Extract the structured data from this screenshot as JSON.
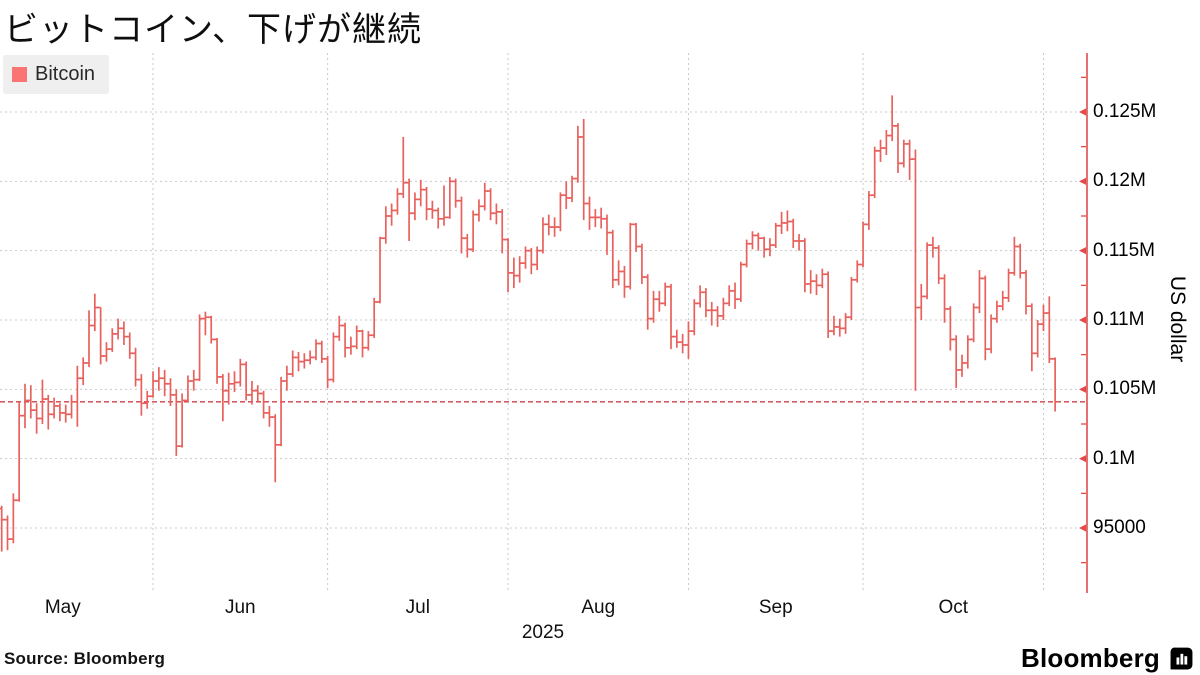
{
  "title": "ビットコイン、下げが継続",
  "legend": {
    "label": "Bitcoin",
    "swatch_color": "#f97473"
  },
  "source": "Source: Bloomberg",
  "brand": {
    "name": "Bloomberg"
  },
  "y_axis": {
    "title": "US dollar",
    "ticks": [
      {
        "value": 95000,
        "label": "95000"
      },
      {
        "value": 100000,
        "label": "0.1M"
      },
      {
        "value": 105000,
        "label": "0.105M"
      },
      {
        "value": 110000,
        "label": "0.11M"
      },
      {
        "value": 115000,
        "label": "0.115M"
      },
      {
        "value": 120000,
        "label": "0.12M"
      },
      {
        "value": 125000,
        "label": "0.125M"
      }
    ]
  },
  "x_axis": {
    "year_label": "2025",
    "month_labels": [
      "May",
      "Jun",
      "Jul",
      "Aug",
      "Sep",
      "Oct"
    ]
  },
  "colors": {
    "bar": "#e8615d",
    "axis": "#e14b4b",
    "last_price_line": "#d13c44",
    "gridline": "#c9c9c9",
    "legend_bg": "#efeff0"
  },
  "chart_data": {
    "type": "ohlc_bar",
    "series_name": "Bitcoin",
    "unit": "US dollar",
    "values_in": "thousands_usd",
    "frequency": "daily",
    "start_date": "2025-05-06",
    "open_rule": "previous_close",
    "open_first": 96.4,
    "last_close_usd": 104100,
    "ylim_usd": [
      90500,
      129500
    ],
    "y_ticks_usd": [
      95000,
      100000,
      105000,
      110000,
      115000,
      120000,
      125000
    ],
    "close": [
      95.6,
      94.2,
      97.0,
      103.1,
      104.2,
      103.5,
      102.9,
      104.3,
      103.2,
      103.8,
      103.3,
      103.2,
      104.1,
      105.8,
      106.9,
      109.6,
      110.9,
      107.4,
      107.9,
      109.0,
      109.4,
      108.8,
      107.6,
      105.7,
      104.0,
      104.5,
      105.6,
      105.8,
      105.4,
      104.6,
      100.9,
      104.2,
      105.6,
      105.7,
      110.1,
      110.2,
      108.6,
      105.9,
      104.9,
      105.4,
      105.5,
      106.8,
      104.6,
      104.9,
      104.7,
      103.3,
      103.0,
      101.0,
      105.6,
      106.1,
      107.3,
      107.0,
      107.1,
      107.3,
      108.3,
      107.2,
      105.7,
      108.8,
      109.6,
      108.0,
      108.1,
      109.2,
      108.0,
      108.9,
      111.3,
      115.9,
      117.5,
      117.9,
      119.1,
      119.9,
      117.7,
      118.7,
      119.4,
      118.0,
      117.9,
      117.3,
      117.4,
      120.0,
      118.6,
      115.9,
      115.1,
      117.6,
      118.2,
      119.3,
      117.7,
      117.8,
      115.8,
      113.4,
      113.2,
      114.1,
      115.0,
      114.0,
      115.0,
      116.9,
      116.7,
      116.7,
      119.0,
      118.8,
      120.2,
      123.2,
      118.4,
      117.4,
      117.4,
      117.3,
      116.3,
      112.9,
      113.5,
      112.4,
      116.9,
      115.3,
      113.1,
      110.1,
      111.5,
      111.2,
      112.4,
      108.8,
      108.4,
      108.2,
      109.2,
      111.2,
      112.0,
      110.7,
      110.7,
      110.3,
      111.2,
      112.1,
      111.5,
      114.0,
      115.5,
      116.1,
      115.9,
      115.1,
      115.4,
      116.8,
      117.0,
      117.1,
      115.7,
      115.7,
      112.6,
      112.8,
      112.5,
      113.3,
      109.2,
      109.5,
      109.4,
      110.2,
      112.9,
      114.0,
      116.9,
      119.0,
      122.2,
      122.4,
      123.3,
      124.0,
      121.3,
      122.7,
      121.6,
      110.9,
      111.7,
      115.4,
      115.2,
      113.0,
      110.8,
      108.6,
      106.4,
      106.9,
      108.6,
      110.9,
      113.0,
      107.9,
      110.1,
      111.0,
      111.6,
      113.4,
      115.3,
      113.4,
      111.0,
      107.6,
      109.7,
      110.5,
      107.2,
      104.1
    ],
    "low": [
      93.3,
      93.4,
      93.9,
      96.9,
      102.2,
      102.9,
      101.8,
      102.5,
      102.1,
      102.9,
      102.7,
      102.6,
      102.9,
      102.3,
      105.3,
      106.6,
      109.2,
      106.8,
      107.0,
      107.7,
      108.6,
      108.2,
      107.2,
      105.2,
      103.1,
      103.6,
      104.4,
      104.9,
      104.5,
      103.8,
      100.2,
      100.8,
      104.1,
      104.9,
      105.6,
      108.9,
      108.3,
      105.4,
      102.7,
      103.9,
      104.8,
      105.2,
      104.2,
      103.9,
      104.1,
      102.9,
      102.3,
      98.3,
      100.9,
      104.9,
      105.9,
      106.3,
      106.5,
      106.8,
      107.1,
      106.9,
      105.1,
      105.5,
      108.5,
      107.3,
      107.5,
      107.9,
      107.3,
      107.8,
      108.7,
      111.2,
      115.5,
      116.8,
      117.6,
      118.8,
      115.7,
      117.2,
      118.2,
      117.2,
      117.3,
      116.6,
      116.8,
      117.3,
      118.1,
      114.8,
      114.5,
      114.9,
      117.1,
      117.9,
      117.2,
      116.9,
      114.8,
      112.0,
      112.3,
      112.7,
      113.7,
      113.3,
      113.6,
      114.8,
      116.1,
      116.0,
      116.4,
      118.0,
      118.5,
      119.9,
      117.2,
      116.5,
      116.7,
      116.6,
      114.7,
      112.3,
      112.5,
      111.6,
      112.2,
      114.9,
      112.6,
      109.3,
      109.8,
      110.6,
      111.0,
      107.9,
      108.0,
      107.6,
      107.2,
      108.9,
      110.9,
      110.2,
      109.6,
      109.5,
      110.0,
      111.0,
      110.8,
      111.3,
      113.8,
      115.1,
      115.0,
      114.5,
      114.6,
      115.2,
      116.2,
      116.4,
      115.2,
      115.0,
      112.0,
      111.9,
      111.8,
      112.3,
      108.7,
      108.9,
      108.8,
      109.0,
      110.0,
      112.7,
      113.8,
      116.5,
      118.8,
      121.4,
      121.9,
      122.9,
      120.6,
      121.0,
      120.1,
      104.9,
      110.0,
      111.5,
      114.5,
      112.6,
      109.8,
      107.8,
      105.1,
      105.9,
      106.5,
      108.4,
      110.5,
      107.1,
      107.6,
      109.8,
      110.7,
      111.3,
      113.2,
      113.0,
      110.4,
      106.3,
      107.3,
      109.2,
      106.9,
      103.4
    ],
    "high": [
      96.6,
      95.9,
      97.5,
      104.1,
      105.4,
      105.3,
      104.0,
      105.7,
      104.6,
      104.4,
      104.0,
      103.9,
      104.6,
      106.7,
      107.3,
      110.7,
      111.9,
      110.9,
      108.4,
      109.4,
      110.1,
      109.9,
      109.1,
      108.0,
      106.1,
      104.9,
      106.3,
      106.6,
      106.4,
      105.8,
      105.0,
      104.7,
      106.0,
      106.4,
      110.4,
      110.6,
      110.3,
      108.7,
      106.1,
      106.2,
      106.3,
      107.2,
      107.0,
      105.6,
      105.3,
      104.9,
      103.8,
      103.2,
      105.9,
      106.7,
      107.8,
      107.7,
      107.6,
      107.8,
      108.6,
      108.5,
      107.4,
      109.1,
      110.3,
      109.8,
      108.8,
      109.6,
      109.3,
      109.2,
      111.6,
      116.0,
      118.2,
      118.4,
      119.5,
      123.2,
      120.2,
      119.2,
      120.1,
      119.6,
      118.6,
      118.1,
      119.7,
      120.3,
      120.2,
      118.9,
      116.2,
      117.9,
      118.7,
      119.9,
      119.5,
      118.4,
      118.0,
      115.9,
      114.5,
      114.6,
      115.3,
      115.2,
      115.3,
      117.4,
      117.6,
      117.4,
      119.2,
      120.0,
      120.4,
      124.0,
      124.5,
      118.9,
      118.0,
      118.1,
      117.6,
      116.5,
      114.3,
      113.9,
      117.0,
      117.0,
      115.5,
      113.3,
      112.1,
      112.1,
      112.7,
      112.6,
      109.3,
      109.0,
      109.9,
      111.5,
      112.5,
      112.3,
      111.3,
      111.0,
      111.6,
      112.5,
      112.7,
      114.2,
      115.8,
      116.4,
      116.3,
      116.0,
      115.9,
      117.0,
      117.8,
      117.9,
      117.3,
      116.2,
      115.9,
      113.6,
      113.3,
      113.7,
      113.5,
      110.3,
      110.1,
      110.5,
      113.1,
      114.3,
      117.1,
      119.3,
      122.5,
      123.0,
      123.7,
      126.2,
      124.2,
      123.0,
      123.0,
      122.3,
      112.6,
      115.6,
      116.0,
      115.4,
      113.3,
      111.0,
      108.9,
      107.5,
      108.9,
      111.2,
      113.6,
      113.2,
      110.4,
      111.4,
      112.1,
      113.7,
      116.0,
      115.5,
      113.6,
      111.2,
      110.0,
      111.1,
      111.7,
      107.3
    ]
  }
}
